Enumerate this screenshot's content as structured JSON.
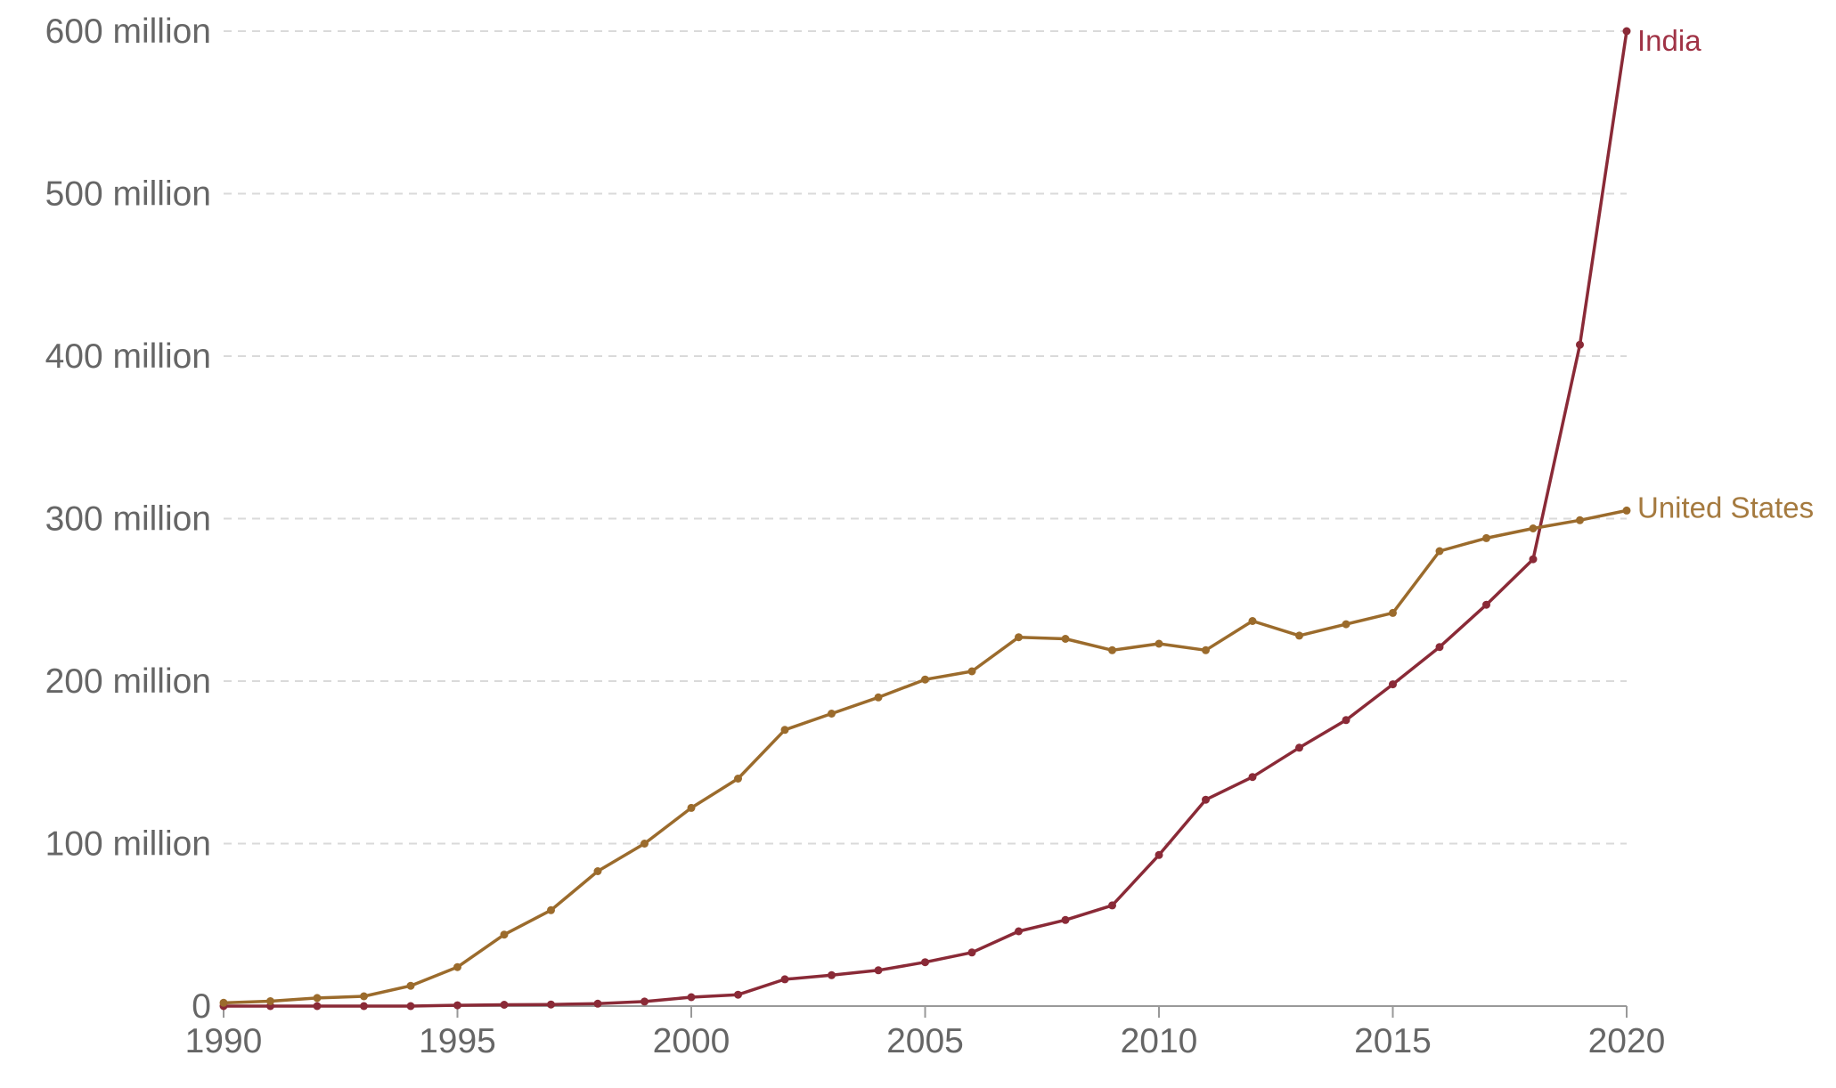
{
  "chart_data": {
    "type": "line",
    "title": "",
    "xlabel": "",
    "ylabel": "",
    "x": [
      1990,
      1991,
      1992,
      1993,
      1994,
      1995,
      1996,
      1997,
      1998,
      1999,
      2000,
      2001,
      2002,
      2003,
      2004,
      2005,
      2006,
      2007,
      2008,
      2009,
      2010,
      2011,
      2012,
      2013,
      2014,
      2015,
      2016,
      2017,
      2018,
      2019,
      2020
    ],
    "xlim": [
      1990,
      2020
    ],
    "ylim": [
      0,
      600000000
    ],
    "x_ticks": [
      1990,
      1995,
      2000,
      2005,
      2010,
      2015,
      2020
    ],
    "x_tick_labels": [
      "1990",
      "1995",
      "2000",
      "2005",
      "2010",
      "2015",
      "2020"
    ],
    "y_ticks": [
      0,
      100000000,
      200000000,
      300000000,
      400000000,
      500000000,
      600000000
    ],
    "y_tick_labels": [
      "0",
      "100 million",
      "200 million",
      "300 million",
      "400 million",
      "500 million",
      "600 million"
    ],
    "grid": "horizontal dashed",
    "legend": "inline labels at line ends",
    "series": [
      {
        "name": "India",
        "color": "#8a2a37",
        "label_color": "#a03346",
        "values": [
          0,
          0,
          0,
          0,
          0,
          500000,
          800000,
          1000000,
          1500000,
          2800000,
          5500000,
          7000000,
          16500000,
          19000000,
          22000000,
          27000000,
          33000000,
          46000000,
          53000000,
          62000000,
          93000000,
          127000000,
          141000000,
          159000000,
          176000000,
          198000000,
          221000000,
          247000000,
          275000000,
          407000000,
          600000000
        ]
      },
      {
        "name": "United States",
        "color": "#9b6b2c",
        "label_color": "#a57a3f",
        "values": [
          2000000,
          3000000,
          5000000,
          6000000,
          12500000,
          24000000,
          44000000,
          59000000,
          83000000,
          100000000,
          122000000,
          140000000,
          170000000,
          180000000,
          190000000,
          201000000,
          206000000,
          227000000,
          226000000,
          219000000,
          223000000,
          219000000,
          237000000,
          228000000,
          235000000,
          242000000,
          280000000,
          288000000,
          294000000,
          299000000,
          305000000
        ]
      }
    ]
  }
}
